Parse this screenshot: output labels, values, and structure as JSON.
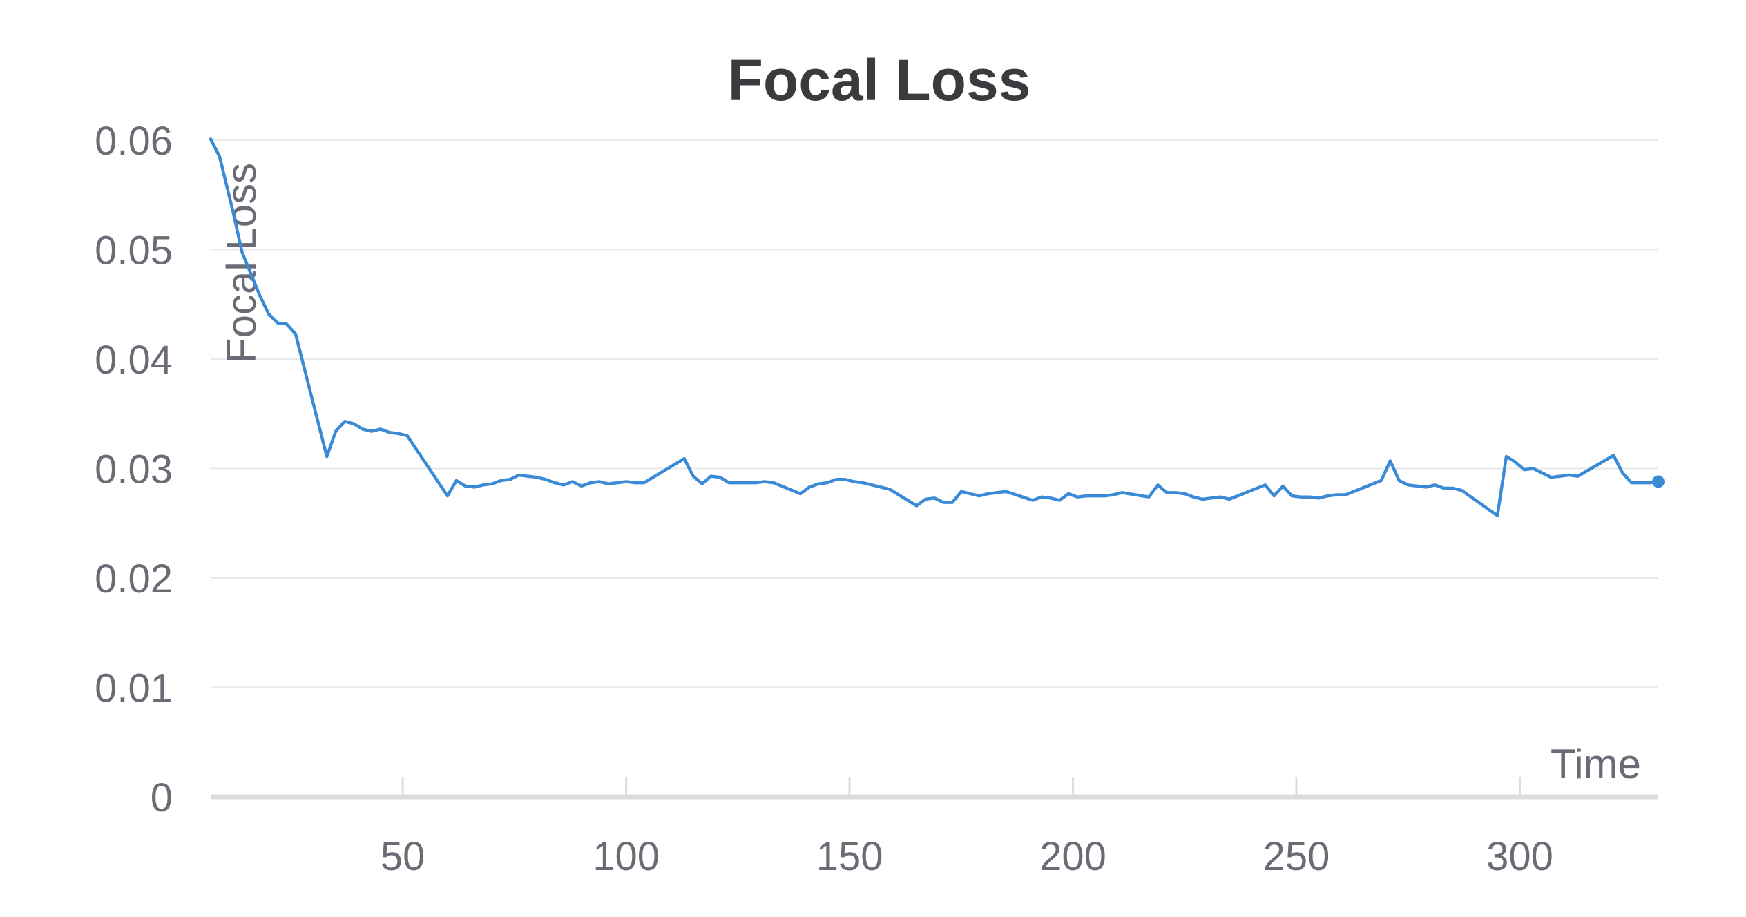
{
  "chart_data": {
    "type": "line",
    "title": "Focal Loss",
    "xlabel": "Time",
    "ylabel": "Focal Loss",
    "xlim": [
      7,
      331
    ],
    "ylim": [
      0,
      0.06
    ],
    "x_ticks": [
      50,
      100,
      150,
      200,
      250,
      300
    ],
    "y_ticks": [
      0,
      0.01,
      0.02,
      0.03,
      0.04,
      0.05,
      0.06
    ],
    "x_tick_labels": [
      "50",
      "100",
      "150",
      "200",
      "250",
      "300"
    ],
    "y_tick_labels": [
      "0",
      "0.01",
      "0.02",
      "0.03",
      "0.04",
      "0.05",
      "0.06"
    ],
    "grid": true,
    "legend": "none",
    "colors": {
      "line": "#3a8ad6"
    },
    "series": [
      {
        "x": [
          7,
          9,
          12,
          14,
          16,
          18,
          20,
          22,
          24,
          26,
          33,
          35,
          37,
          39,
          41,
          43,
          45,
          47,
          49,
          51,
          60,
          62,
          64,
          66,
          68,
          70,
          72,
          74,
          76,
          78,
          80,
          82,
          84,
          86,
          88,
          90,
          92,
          94,
          96,
          98,
          100,
          102,
          104,
          113,
          115,
          117,
          119,
          121,
          123,
          125,
          127,
          129,
          131,
          133,
          139,
          141,
          143,
          145,
          147,
          149,
          151,
          153,
          155,
          157,
          159,
          165,
          167,
          169,
          171,
          173,
          175,
          177,
          179,
          181,
          183,
          185,
          191,
          193,
          195,
          197,
          199,
          201,
          203,
          205,
          207,
          209,
          211,
          217,
          219,
          221,
          223,
          225,
          227,
          229,
          231,
          233,
          235,
          243,
          245,
          247,
          249,
          251,
          253,
          255,
          257,
          259,
          261,
          269,
          271,
          273,
          275,
          277,
          279,
          281,
          283,
          285,
          287,
          295,
          297,
          299,
          301,
          303,
          305,
          307,
          309,
          311,
          313,
          321,
          323,
          325,
          327,
          329,
          331
        ],
        "y": [
          0.0601,
          0.0585,
          0.0535,
          0.0498,
          0.0478,
          0.0458,
          0.0441,
          0.0433,
          0.0432,
          0.0423,
          0.0311,
          0.0334,
          0.0343,
          0.0341,
          0.0336,
          0.0334,
          0.0336,
          0.0333,
          0.0332,
          0.033,
          0.0275,
          0.0289,
          0.0284,
          0.0283,
          0.0285,
          0.0286,
          0.0289,
          0.029,
          0.0294,
          0.0293,
          0.0292,
          0.029,
          0.0287,
          0.0285,
          0.0288,
          0.0284,
          0.0287,
          0.0288,
          0.0286,
          0.0287,
          0.0288,
          0.0287,
          0.0287,
          0.0309,
          0.0293,
          0.0286,
          0.0293,
          0.0292,
          0.0287,
          0.0287,
          0.0287,
          0.0287,
          0.0288,
          0.0287,
          0.0277,
          0.0283,
          0.0286,
          0.0287,
          0.029,
          0.029,
          0.0288,
          0.0287,
          0.0285,
          0.0283,
          0.0281,
          0.0266,
          0.0272,
          0.0273,
          0.0269,
          0.0269,
          0.0279,
          0.0277,
          0.0275,
          0.0277,
          0.0278,
          0.0279,
          0.0271,
          0.0274,
          0.0273,
          0.0271,
          0.0277,
          0.0274,
          0.0275,
          0.0275,
          0.0275,
          0.0276,
          0.0278,
          0.0274,
          0.0285,
          0.0278,
          0.0278,
          0.0277,
          0.0274,
          0.0272,
          0.0273,
          0.0274,
          0.0272,
          0.0285,
          0.0275,
          0.0284,
          0.0275,
          0.0274,
          0.0274,
          0.0273,
          0.0275,
          0.0276,
          0.0276,
          0.0289,
          0.0307,
          0.0289,
          0.0285,
          0.0284,
          0.0283,
          0.0285,
          0.0282,
          0.0282,
          0.028,
          0.0257,
          0.0311,
          0.0306,
          0.0299,
          0.03,
          0.0296,
          0.0292,
          0.0293,
          0.0294,
          0.0293,
          0.0312,
          0.0296,
          0.0287,
          0.0287,
          0.0287,
          0.0288
        ]
      }
    ]
  }
}
